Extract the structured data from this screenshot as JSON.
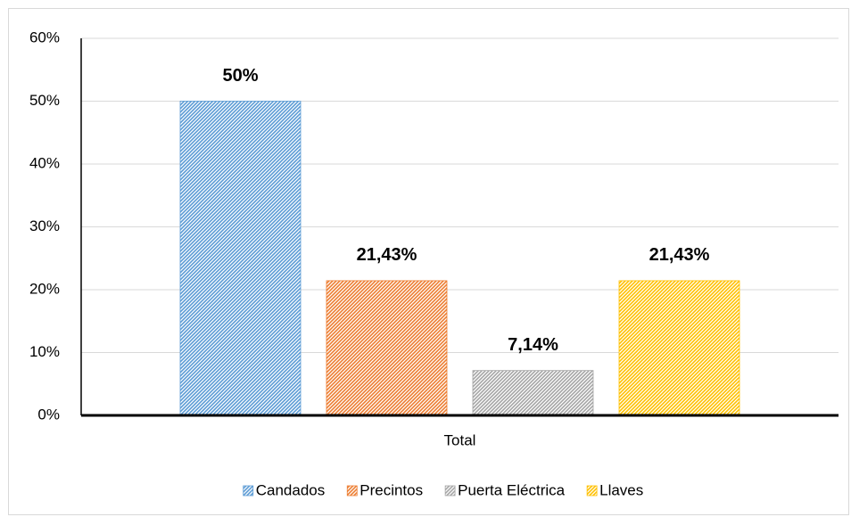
{
  "chart_data": {
    "type": "bar",
    "categories": [
      "Total"
    ],
    "series": [
      {
        "name": "Candados",
        "color": "#5b9bd5",
        "values": [
          50
        ],
        "value_labels": [
          "50%"
        ]
      },
      {
        "name": "Precintos",
        "color": "#ed7d31",
        "values": [
          21.43
        ],
        "value_labels": [
          "21,43%"
        ]
      },
      {
        "name": "Puerta Eléctrica",
        "color": "#a5a5a5",
        "values": [
          7.14
        ],
        "value_labels": [
          "7,14%"
        ]
      },
      {
        "name": "Llaves",
        "color": "#ffc000",
        "values": [
          21.43
        ],
        "value_labels": [
          "21,43%"
        ]
      }
    ],
    "ylim": [
      0,
      60
    ],
    "yticks": [
      {
        "value": 0,
        "label": "0%"
      },
      {
        "value": 10,
        "label": "10%"
      },
      {
        "value": 20,
        "label": "20%"
      },
      {
        "value": 30,
        "label": "30%"
      },
      {
        "value": 40,
        "label": "40%"
      },
      {
        "value": 50,
        "label": "50%"
      },
      {
        "value": 60,
        "label": "60%"
      }
    ],
    "grid": true,
    "legend": "bottom"
  }
}
